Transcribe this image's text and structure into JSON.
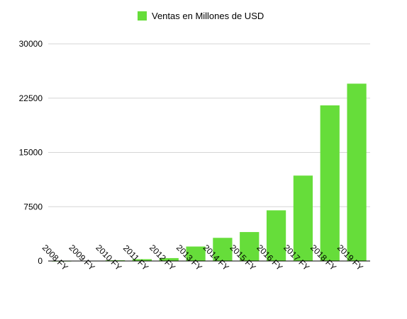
{
  "chart_data": {
    "type": "bar",
    "title": "",
    "xlabel": "",
    "ylabel": "",
    "categories": [
      "2008 FY",
      "2009 FY",
      "2010 FY",
      "2011 FY",
      "2012 FY",
      "2013 FY",
      "2014 FY",
      "2015 FY",
      "2016 FY",
      "2017 FY",
      "2018 FY",
      "2019 FY"
    ],
    "series": [
      {
        "name": "Ventas en Millones de USD",
        "color": "#66dd3a",
        "values": [
          10,
          50,
          100,
          250,
          400,
          2000,
          3200,
          4000,
          7000,
          11800,
          21500,
          24500
        ]
      }
    ],
    "ylim": [
      0,
      30000
    ],
    "yticks": [
      0,
      7500,
      15000,
      22500,
      30000
    ],
    "ytick_labels": [
      "0",
      "7500",
      "15000",
      "22500",
      "30000"
    ],
    "grid": true,
    "legend_position": "top-center"
  }
}
